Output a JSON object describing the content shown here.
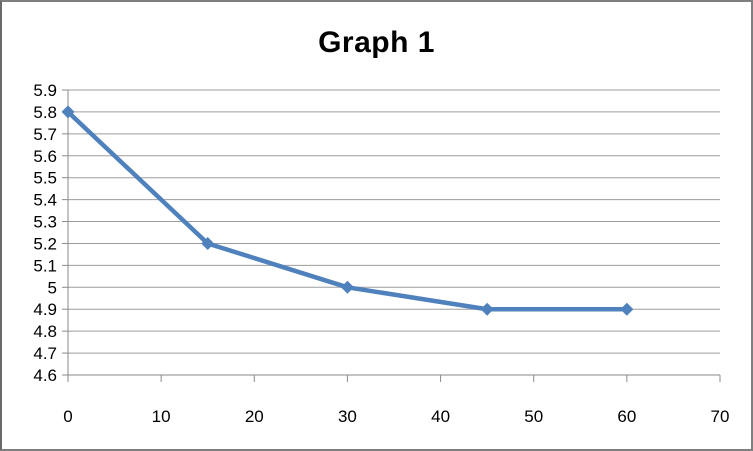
{
  "chart_data": {
    "type": "line",
    "title": "Graph 1",
    "xlabel": "",
    "ylabel": "",
    "x": [
      0,
      15,
      30,
      45,
      60
    ],
    "y": [
      5.8,
      5.2,
      5.0,
      4.9,
      4.9
    ],
    "xlim": [
      0,
      70
    ],
    "ylim": [
      4.6,
      5.9
    ],
    "x_ticks": [
      0,
      10,
      20,
      30,
      40,
      50,
      60,
      70
    ],
    "y_ticks": [
      5.9,
      5.8,
      5.7,
      5.6,
      5.5,
      5.4,
      5.3,
      5.2,
      5.1,
      5,
      4.9,
      4.8,
      4.7,
      4.6
    ],
    "grid": "horizontal-only",
    "legend": "none",
    "marker": "diamond",
    "colors": {
      "series": "#4F81BD",
      "gridline": "#9D9D9D",
      "axis": "#8A8A8A",
      "tick_text": "#000000",
      "title_text": "#000000",
      "background": "#FFFFFF",
      "frame_border": "#7F7F7F"
    }
  }
}
